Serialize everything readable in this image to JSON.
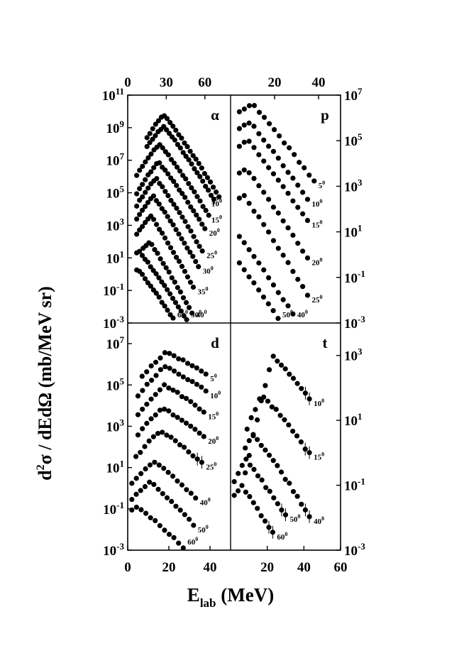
{
  "figure": {
    "ylabel_text": "d²σ / dEdΩ (mb/MeV sr)",
    "ylabel_parts": [
      "d",
      "2",
      "σ / dEdΩ (mb/MeV sr)"
    ],
    "xlabel_text": "Elab (MeV)",
    "xlabel_parts": [
      "E",
      "lab",
      " (MeV)"
    ],
    "degree_symbol": "0"
  },
  "chart_data": [
    {
      "type": "scatter",
      "title": "α",
      "xlim": [
        0,
        80
      ],
      "x_ticks": [
        "0",
        "30",
        "60"
      ],
      "x_tick_values": [
        0,
        30,
        60
      ],
      "x_axis_position": "top",
      "ylim_log10": [
        -3,
        11
      ],
      "y_ticks": [
        "10^11",
        "10^9",
        "10^7",
        "10^5",
        "10^3",
        "10^1",
        "10^-1",
        "10^-3"
      ],
      "y_axis_position": "left",
      "angle_labels": [
        "5",
        "10",
        "15",
        "20",
        "25",
        "30",
        "35",
        "40",
        "50",
        "60"
      ],
      "series": [
        {
          "angle": "5",
          "x_range": [
            15,
            71
          ],
          "peak_x": 28,
          "peak_log": 9.8,
          "slope_low": 0.09,
          "slope_high": 0.1
        },
        {
          "angle": "10",
          "x_range": [
            15,
            67
          ],
          "peak_x": 28,
          "peak_log": 9.1,
          "slope_low": 0.08,
          "slope_high": 0.1
        },
        {
          "angle": "15",
          "x_range": [
            7,
            63
          ],
          "peak_x": 25,
          "peak_log": 8.0,
          "slope_low": 0.08,
          "slope_high": 0.1
        },
        {
          "angle": "20",
          "x_range": [
            7,
            60
          ],
          "peak_x": 24,
          "peak_log": 6.9,
          "slope_low": 0.09,
          "slope_high": 0.1
        },
        {
          "angle": "25",
          "x_range": [
            7,
            58
          ],
          "peak_x": 22,
          "peak_log": 5.9,
          "slope_low": 0.09,
          "slope_high": 0.11
        },
        {
          "angle": "30",
          "x_range": [
            7,
            55
          ],
          "peak_x": 20,
          "peak_log": 4.8,
          "slope_low": 0.09,
          "slope_high": 0.11
        },
        {
          "angle": "35",
          "x_range": [
            7,
            51
          ],
          "peak_x": 18,
          "peak_log": 3.6,
          "slope_low": 0.09,
          "slope_high": 0.12
        },
        {
          "angle": "40",
          "x_range": [
            12,
            50
          ],
          "peak_x": 17,
          "peak_log": 2.0,
          "slope_low": 0.08,
          "slope_high": 0.12
        },
        {
          "angle": "50",
          "x_range": [
            7,
            48
          ],
          "peak_x": 9,
          "peak_log": 1.4,
          "slope_low": 0.05,
          "slope_high": 0.1
        },
        {
          "angle": "60",
          "x_range": [
            7,
            44
          ],
          "peak_x": 8,
          "peak_log": 0.3,
          "slope_low": 0.05,
          "slope_high": 0.1
        }
      ]
    },
    {
      "type": "scatter",
      "title": "p",
      "xlim": [
        0,
        50
      ],
      "x_ticks": [
        "20",
        "40"
      ],
      "x_tick_values": [
        20,
        40
      ],
      "x_axis_position": "top",
      "ylim_log10": [
        -3,
        7
      ],
      "y_ticks": [
        "10^7",
        "10^5",
        "10^3",
        "10^1",
        "10^-1",
        "10^-3"
      ],
      "y_axis_position": "right",
      "angle_labels": [
        "5",
        "10",
        "15",
        "20",
        "25",
        "40",
        "50"
      ],
      "series": [
        {
          "angle": "5",
          "x_range": [
            4,
            38
          ],
          "peak_x": 10,
          "peak_log": 6.6,
          "slope_low": 0.05,
          "slope_high": 0.11
        },
        {
          "angle": "10",
          "x_range": [
            4,
            35
          ],
          "peak_x": 9,
          "peak_log": 5.8,
          "slope_low": 0.05,
          "slope_high": 0.12
        },
        {
          "angle": "15",
          "x_range": [
            4,
            35
          ],
          "peak_x": 8,
          "peak_log": 5.0,
          "slope_low": 0.05,
          "slope_high": 0.12
        },
        {
          "angle": "20",
          "x_range": [
            4,
            35
          ],
          "peak_x": 7,
          "peak_log": 3.8,
          "slope_low": 0.06,
          "slope_high": 0.13
        },
        {
          "angle": "25",
          "x_range": [
            4,
            35
          ],
          "peak_x": 6,
          "peak_log": 2.6,
          "slope_low": 0.06,
          "slope_high": 0.14
        },
        {
          "angle": "40",
          "x_range": [
            4,
            35
          ],
          "peak_x": 4,
          "peak_log": 0.8,
          "slope_low": 0.06,
          "slope_high": 0.13
        },
        {
          "angle": "50",
          "x_range": [
            4,
            37
          ],
          "peak_x": 4,
          "peak_log": -0.4,
          "slope_low": 0.06,
          "slope_high": 0.13
        }
      ]
    },
    {
      "type": "scatter",
      "title": "d",
      "xlim": [
        0,
        50
      ],
      "x_ticks": [
        "0",
        "20",
        "40"
      ],
      "x_tick_values": [
        0,
        20,
        40
      ],
      "x_axis_position": "bottom",
      "ylim_log10": [
        -3,
        8
      ],
      "y_ticks": [
        "10^7",
        "10^5",
        "10^3",
        "10^1",
        "10^-1",
        "10^-3"
      ],
      "y_axis_position": "left",
      "angle_labels": [
        "5",
        "10",
        "15",
        "20",
        "25",
        "40",
        "50",
        "60"
      ],
      "series": [
        {
          "angle": "5",
          "x_range": [
            7,
            38
          ],
          "peak_x": 19,
          "peak_log": 6.6,
          "slope_low": 0.08,
          "slope_high": 0.05
        },
        {
          "angle": "10",
          "x_range": [
            5,
            38
          ],
          "peak_x": 18,
          "peak_log": 5.9,
          "slope_low": 0.09,
          "slope_high": 0.05
        },
        {
          "angle": "15",
          "x_range": [
            5,
            37
          ],
          "peak_x": 18,
          "peak_log": 5.0,
          "slope_low": 0.09,
          "slope_high": 0.06
        },
        {
          "angle": "20",
          "x_range": [
            5,
            37
          ],
          "peak_x": 17,
          "peak_log": 3.9,
          "slope_low": 0.09,
          "slope_high": 0.06
        },
        {
          "angle": "25",
          "x_range": [
            4,
            36
          ],
          "peak_x": 16,
          "peak_log": 2.8,
          "slope_low": 0.09,
          "slope_high": 0.07
        },
        {
          "angle": "40",
          "x_range": [
            2,
            33
          ],
          "peak_x": 13,
          "peak_log": 1.3,
          "slope_low": 0.08,
          "slope_high": 0.08
        },
        {
          "angle": "50",
          "x_range": [
            2,
            32
          ],
          "peak_x": 11,
          "peak_log": 0.3,
          "slope_low": 0.08,
          "slope_high": 0.09
        },
        {
          "angle": "60",
          "x_range": [
            2,
            27
          ],
          "peak_x": 5,
          "peak_log": -0.9,
          "slope_low": 0.05,
          "slope_high": 0.08
        }
      ]
    },
    {
      "type": "scatter",
      "title": "t",
      "xlim": [
        0,
        60
      ],
      "x_ticks": [
        "20",
        "40",
        "60"
      ],
      "x_tick_values": [
        20,
        40,
        60
      ],
      "x_axis_position": "bottom",
      "ylim_log10": [
        -3,
        4
      ],
      "y_ticks": [
        "10^3",
        "10^1",
        "10^-1",
        "10^-3"
      ],
      "y_axis_position": "right",
      "angle_labels": [
        "10",
        "15",
        "40",
        "50",
        "60"
      ],
      "series": [
        {
          "angle": "10",
          "x_range": [
            8,
            43
          ],
          "peak_x": 23,
          "peak_log": 3.0,
          "slope_low": 0.22,
          "slope_high": 0.06
        },
        {
          "angle": "15",
          "x_range": [
            9,
            43
          ],
          "peak_x": 17,
          "peak_log": 1.8,
          "slope_low": 0.12,
          "slope_high": 0.06
        },
        {
          "angle": "40",
          "x_range": [
            8,
            43
          ],
          "peak_x": 12,
          "peak_log": 0.6,
          "slope_low": 0.1,
          "slope_high": 0.07
        },
        {
          "angle": "50",
          "x_range": [
            2,
            30
          ],
          "peak_x": 8,
          "peak_log": -0.2,
          "slope_low": 0.1,
          "slope_high": 0.07
        },
        {
          "angle": "60",
          "x_range": [
            2,
            23
          ],
          "peak_x": 6,
          "peak_log": -1.0,
          "slope_low": 0.08,
          "slope_high": 0.08
        }
      ]
    }
  ]
}
